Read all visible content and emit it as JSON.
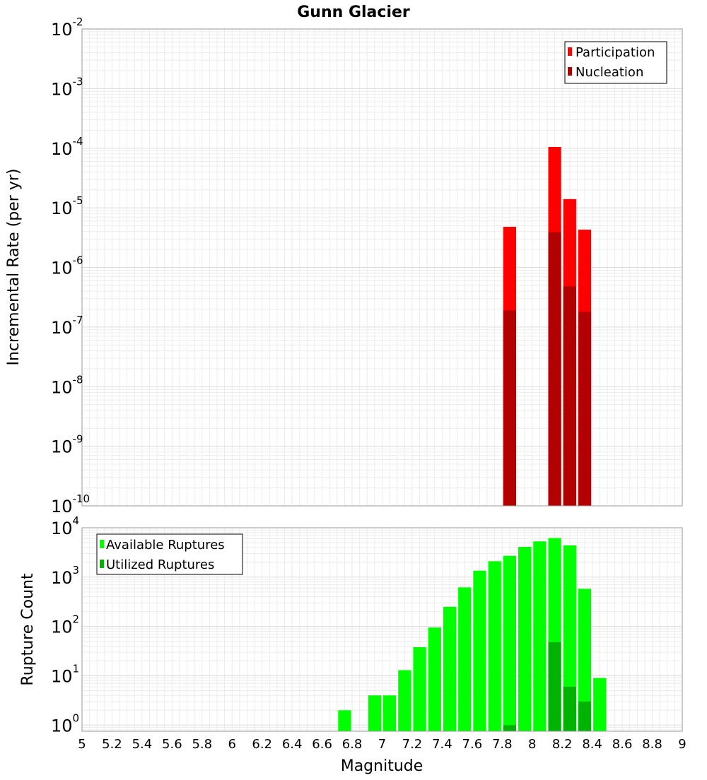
{
  "chart_data": [
    {
      "type": "bar",
      "title": "Gunn Glacier",
      "xlabel": "",
      "ylabel": "Incremental Rate (per yr)",
      "yscale": "log",
      "ylim": [
        1e-10,
        0.01
      ],
      "ytick_labels": [
        {
          "base": "10",
          "exp": "-10"
        },
        {
          "base": "10",
          "exp": "-9"
        },
        {
          "base": "10",
          "exp": "-8"
        },
        {
          "base": "10",
          "exp": "-7"
        },
        {
          "base": "10",
          "exp": "-6"
        },
        {
          "base": "10",
          "exp": "-5"
        },
        {
          "base": "10",
          "exp": "-4"
        },
        {
          "base": "10",
          "exp": "-3"
        },
        {
          "base": "10",
          "exp": "-2"
        }
      ],
      "xlim": [
        5,
        9
      ],
      "bar_width": 0.1,
      "legend_position": "top-right",
      "series": [
        {
          "name": "Participation",
          "color": "#ff0000",
          "x": [
            7.85,
            8.15,
            8.25,
            8.35
          ],
          "values": [
            4.8e-06,
            0.000105,
            1.4e-05,
            4.3e-06
          ]
        },
        {
          "name": "Nucleation",
          "color": "#b30000",
          "x": [
            7.85,
            8.15,
            8.25,
            8.35
          ],
          "values": [
            1.9e-07,
            3.9e-06,
            4.8e-07,
            1.8e-07
          ]
        }
      ]
    },
    {
      "type": "bar",
      "title": "",
      "xlabel": "Magnitude",
      "ylabel": "Rupture Count",
      "yscale": "log",
      "ylim": [
        0.75,
        10000
      ],
      "ytick_labels": [
        {
          "base": "10",
          "exp": "0",
          "value": 1
        },
        {
          "base": "10",
          "exp": "1",
          "value": 10
        },
        {
          "base": "10",
          "exp": "2",
          "value": 100
        },
        {
          "base": "10",
          "exp": "3",
          "value": 1000
        },
        {
          "base": "10",
          "exp": "4",
          "value": 10000
        }
      ],
      "xlim": [
        5,
        9
      ],
      "bar_width": 0.1,
      "xtick_labels": [
        "5",
        "5.2",
        "5.4",
        "5.6",
        "5.8",
        "6",
        "6.2",
        "6.4",
        "6.6",
        "6.8",
        "7",
        "7.2",
        "7.4",
        "7.6",
        "7.8",
        "8",
        "8.2",
        "8.4",
        "8.6",
        "8.8",
        "9"
      ],
      "legend_position": "top-left",
      "series": [
        {
          "name": "Available Ruptures",
          "color": "#00ff00",
          "x": [
            6.75,
            6.95,
            7.05,
            7.15,
            7.25,
            7.35,
            7.45,
            7.55,
            7.65,
            7.75,
            7.85,
            7.95,
            8.05,
            8.15,
            8.25,
            8.35,
            8.45
          ],
          "values": [
            2,
            4,
            4,
            13,
            38,
            95,
            250,
            620,
            1350,
            2100,
            2700,
            4100,
            5300,
            6200,
            4400,
            580,
            9
          ]
        },
        {
          "name": "Utilized Ruptures",
          "color": "#00b300",
          "x": [
            7.85,
            8.15,
            8.25,
            8.35
          ],
          "values": [
            1,
            48,
            6,
            3
          ]
        }
      ]
    }
  ]
}
